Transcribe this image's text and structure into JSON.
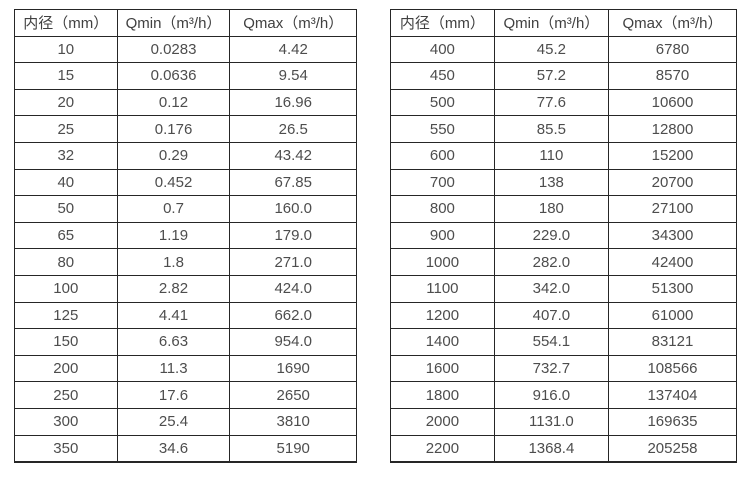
{
  "colors": {
    "background": "#ffffff",
    "border": "#262626",
    "header_text": "#404040",
    "cell_text": "#4d4d4d"
  },
  "tables": [
    {
      "name": "flow-range-small-diameters",
      "headers": [
        "内径（mm）",
        "Qmin（m³/h）",
        "Qmax（m³/h）"
      ],
      "rows": [
        [
          "10",
          "0.0283",
          "4.42"
        ],
        [
          "15",
          "0.0636",
          "9.54"
        ],
        [
          "20",
          "0.12",
          "16.96"
        ],
        [
          "25",
          "0.176",
          "26.5"
        ],
        [
          "32",
          "0.29",
          "43.42"
        ],
        [
          "40",
          "0.452",
          "67.85"
        ],
        [
          "50",
          "0.7",
          "160.0"
        ],
        [
          "65",
          "1.19",
          "179.0"
        ],
        [
          "80",
          "1.8",
          "271.0"
        ],
        [
          "100",
          "2.82",
          "424.0"
        ],
        [
          "125",
          "4.41",
          "662.0"
        ],
        [
          "150",
          "6.63",
          "954.0"
        ],
        [
          "200",
          "11.3",
          "1690"
        ],
        [
          "250",
          "17.6",
          "2650"
        ],
        [
          "300",
          "25.4",
          "3810"
        ],
        [
          "350",
          "34.6",
          "5190"
        ]
      ]
    },
    {
      "name": "flow-range-large-diameters",
      "headers": [
        "内径（mm）",
        "Qmin（m³/h）",
        "Qmax（m³/h）"
      ],
      "rows": [
        [
          "400",
          "45.2",
          "6780"
        ],
        [
          "450",
          "57.2",
          "8570"
        ],
        [
          "500",
          "77.6",
          "10600"
        ],
        [
          "550",
          "85.5",
          "12800"
        ],
        [
          "600",
          "110",
          "15200"
        ],
        [
          "700",
          "138",
          "20700"
        ],
        [
          "800",
          "180",
          "27100"
        ],
        [
          "900",
          "229.0",
          "34300"
        ],
        [
          "1000",
          "282.0",
          "42400"
        ],
        [
          "1100",
          "342.0",
          "51300"
        ],
        [
          "1200",
          "407.0",
          "61000"
        ],
        [
          "1400",
          "554.1",
          "83121"
        ],
        [
          "1600",
          "732.7",
          "108566"
        ],
        [
          "1800",
          "916.0",
          "137404"
        ],
        [
          "2000",
          "1131.0",
          "169635"
        ],
        [
          "2200",
          "1368.4",
          "205258"
        ]
      ]
    }
  ]
}
